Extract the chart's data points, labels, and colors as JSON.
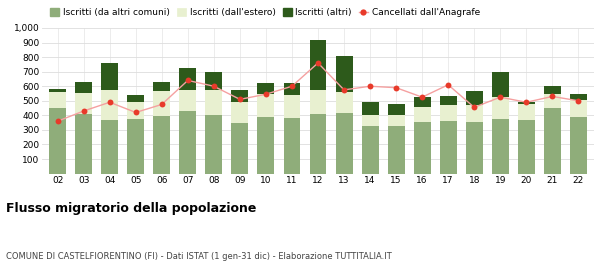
{
  "years": [
    "02",
    "03",
    "04",
    "05",
    "06",
    "07",
    "08",
    "09",
    "10",
    "11",
    "12",
    "13",
    "14",
    "15",
    "16",
    "17",
    "18",
    "19",
    "20",
    "21",
    "22"
  ],
  "iscritti_altri_comuni": [
    450,
    410,
    365,
    375,
    395,
    430,
    400,
    350,
    390,
    380,
    410,
    415,
    325,
    330,
    355,
    360,
    355,
    375,
    370,
    450,
    390
  ],
  "iscritti_estero": [
    110,
    145,
    210,
    115,
    175,
    145,
    175,
    145,
    155,
    160,
    165,
    145,
    80,
    70,
    105,
    110,
    115,
    150,
    110,
    100,
    115
  ],
  "iscritti_altri": [
    20,
    75,
    185,
    50,
    60,
    150,
    125,
    80,
    75,
    80,
    340,
    245,
    90,
    75,
    65,
    65,
    100,
    175,
    15,
    50,
    45
  ],
  "cancellati": [
    360,
    430,
    490,
    420,
    475,
    640,
    600,
    510,
    545,
    600,
    760,
    575,
    600,
    590,
    525,
    610,
    455,
    525,
    490,
    530,
    500
  ],
  "color_altri_comuni": "#8fad7a",
  "color_estero": "#e8f0d0",
  "color_altri": "#2d5a1b",
  "color_cancellati": "#e83a2a",
  "color_cancellati_line": "#f5a0a0",
  "title": "Flusso migratorio della popolazione",
  "subtitle": "COMUNE DI CASTELFIORENTINO (FI) - Dati ISTAT (1 gen-31 dic) - Elaborazione TUTTITALIA.IT",
  "legend_labels": [
    "Iscritti (da altri comuni)",
    "Iscritti (dall'estero)",
    "Iscritti (altri)",
    "Cancellati dall'Anagrafe"
  ],
  "ylim": [
    0,
    1000
  ],
  "yticks": [
    0,
    100,
    200,
    300,
    400,
    500,
    600,
    700,
    800,
    900,
    1000
  ],
  "ytick_labels": [
    "",
    "100",
    "200",
    "300",
    "400",
    "500",
    "600",
    "700",
    "800",
    "900",
    "1,000"
  ],
  "bg_color": "#ffffff",
  "grid_color": "#dddddd"
}
